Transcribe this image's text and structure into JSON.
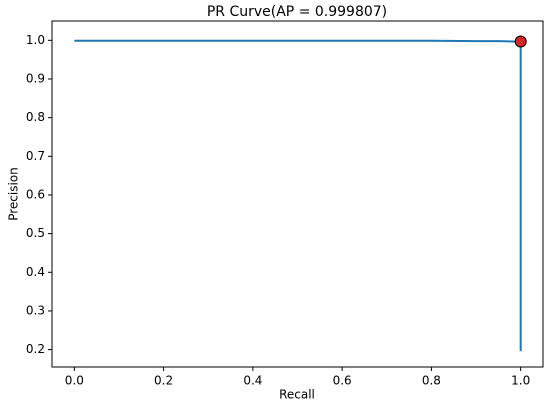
{
  "chart_data": {
    "type": "line",
    "title": "PR Curve(AP = 0.999807)",
    "x_label": "Recall",
    "y_label": "Precision",
    "x": [
      0.0,
      0.1,
      0.2,
      0.3,
      0.4,
      0.5,
      0.6,
      0.7,
      0.8,
      0.9,
      0.95,
      0.98,
      1.0,
      1.0
    ],
    "series": [
      {
        "color": "#1f77b4",
        "values": [
          0.999,
          0.999,
          0.999,
          0.999,
          0.999,
          0.999,
          0.999,
          0.999,
          0.999,
          0.998,
          0.998,
          0.997,
          0.997,
          0.196
        ]
      }
    ],
    "point": {
      "x": 1.0,
      "y": 0.997,
      "color": "#d62728"
    },
    "xlim": [
      -0.05,
      1.05
    ],
    "xticks": [
      {
        "value": 0.0,
        "label": "0.0"
      },
      0.2,
      0.4,
      0.6,
      0.8,
      {
        "value": 1.0,
        "label": "1.0"
      }
    ],
    "ylim": [
      0.155,
      1.05
    ],
    "yticks": [
      0.2,
      0.3,
      0.4,
      0.5,
      0.6,
      0.7,
      0.8,
      0.9,
      {
        "value": 1.0,
        "label": "1.0"
      }
    ]
  }
}
